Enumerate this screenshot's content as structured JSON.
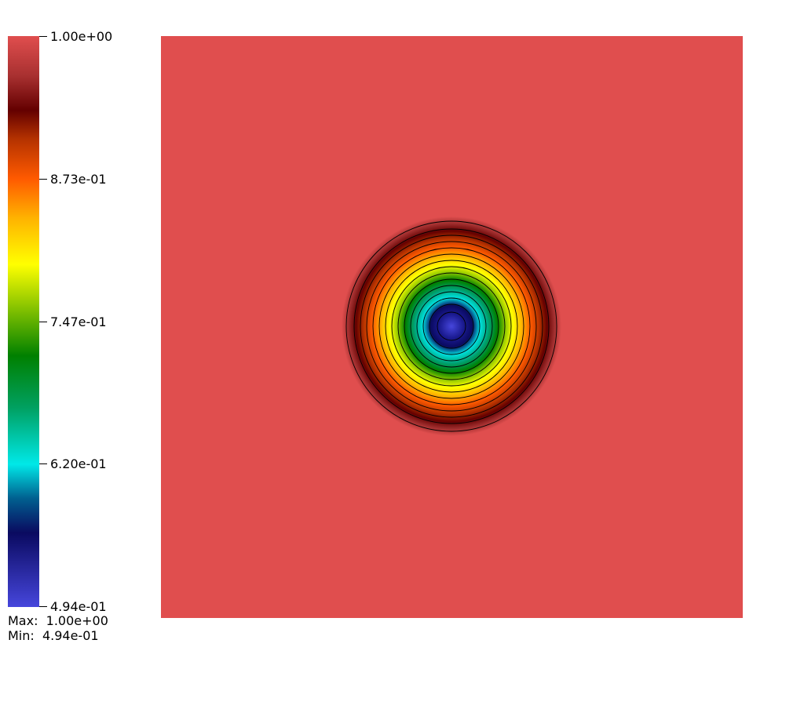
{
  "chart_data": {
    "type": "heatmap",
    "colorbar": {
      "ticks": [
        "1.00e+00",
        "8.73e-01",
        "7.47e-01",
        "6.20e-01",
        "4.94e-01"
      ],
      "tick_values": [
        1.0,
        0.873,
        0.747,
        0.62,
        0.494
      ],
      "max_label": "Max:  1.00e+00",
      "min_label": "Min:  4.94e-01",
      "range": [
        0.494,
        1.0
      ]
    },
    "field": {
      "description_values": "radially symmetric field, minimum at center, rising to maximum outside a ring",
      "background_value": 1.0,
      "center_value": 0.494,
      "contour_lines": true
    },
    "colors": {
      "background": "#e04e4e",
      "colormap": [
        "#4646dc",
        "#0d0d6b",
        "#00b3b3",
        "#00e6e6",
        "#0a8a3a",
        "#008000",
        "#7fbf00",
        "#ffff00",
        "#ffbf00",
        "#ff6000",
        "#c83c00",
        "#6e0000",
        "#a83030",
        "#e04e4e"
      ]
    }
  }
}
